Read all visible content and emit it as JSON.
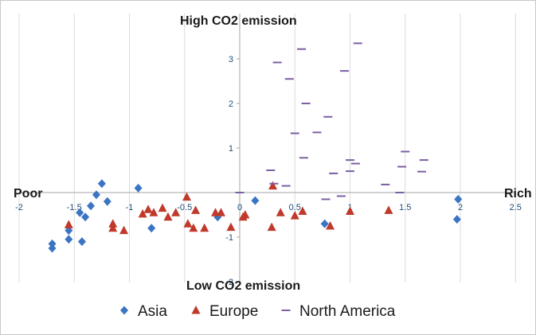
{
  "chart_data": {
    "type": "scatter",
    "title": "",
    "xlabel": "",
    "ylabel": "",
    "xlim": [
      -2,
      2.5
    ],
    "ylim": [
      -2,
      4
    ],
    "x_ticks": [
      -2,
      -1.5,
      -1,
      -0.5,
      0,
      0.5,
      1,
      1.5,
      2,
      2.5
    ],
    "x_tick_labels": [
      "-2",
      "-1.5",
      "-1",
      "-0.5",
      "0",
      "0.5",
      "1",
      "1.5",
      "2",
      "2.5"
    ],
    "y_ticks": [
      -2,
      -1,
      1,
      2,
      3
    ],
    "y_tick_labels": [
      "-2",
      "-1",
      "1",
      "2",
      "3"
    ],
    "grid": "vertical gridlines",
    "legend_position": "bottom",
    "annotations": {
      "top": "High CO2 emission",
      "bottom": "Low CO2 emission",
      "left": "Poor",
      "right": "Rich"
    },
    "series": [
      {
        "name": "Asia",
        "marker": "diamond",
        "color": "#3a75c4",
        "points": [
          [
            -1.7,
            -1.15
          ],
          [
            -1.7,
            -1.25
          ],
          [
            -1.55,
            -0.85
          ],
          [
            -1.55,
            -1.05
          ],
          [
            -1.45,
            -0.45
          ],
          [
            -1.43,
            -1.1
          ],
          [
            -1.4,
            -0.55
          ],
          [
            -1.35,
            -0.3
          ],
          [
            -1.3,
            -0.05
          ],
          [
            -1.25,
            0.2
          ],
          [
            -1.2,
            -0.2
          ],
          [
            -0.92,
            0.1
          ],
          [
            -0.8,
            -0.8
          ],
          [
            -0.2,
            -0.55
          ],
          [
            0.14,
            -0.18
          ],
          [
            0.77,
            -0.7
          ],
          [
            1.98,
            -0.15
          ],
          [
            1.97,
            -0.6
          ]
        ]
      },
      {
        "name": "Europe",
        "marker": "triangle",
        "color": "#c0392b",
        "points": [
          [
            -1.55,
            -0.72
          ],
          [
            -1.15,
            -0.7
          ],
          [
            -1.15,
            -0.8
          ],
          [
            -1.05,
            -0.85
          ],
          [
            -0.88,
            -0.48
          ],
          [
            -0.83,
            -0.38
          ],
          [
            -0.78,
            -0.45
          ],
          [
            -0.7,
            -0.35
          ],
          [
            -0.65,
            -0.55
          ],
          [
            -0.58,
            -0.45
          ],
          [
            -0.48,
            -0.1
          ],
          [
            -0.47,
            -0.7
          ],
          [
            -0.42,
            -0.8
          ],
          [
            -0.4,
            -0.4
          ],
          [
            -0.32,
            -0.8
          ],
          [
            -0.22,
            -0.45
          ],
          [
            -0.17,
            -0.45
          ],
          [
            -0.08,
            -0.78
          ],
          [
            0.03,
            -0.55
          ],
          [
            0.05,
            -0.5
          ],
          [
            0.3,
            0.15
          ],
          [
            0.29,
            -0.78
          ],
          [
            0.37,
            -0.45
          ],
          [
            0.5,
            -0.52
          ],
          [
            0.57,
            -0.42
          ],
          [
            0.82,
            -0.75
          ],
          [
            1.0,
            -0.42
          ],
          [
            1.35,
            -0.4
          ]
        ]
      },
      {
        "name": "North America",
        "marker": "dash",
        "color": "#7b5fa3",
        "points": [
          [
            0.0,
            0.0
          ],
          [
            0.28,
            0.5
          ],
          [
            0.34,
            2.92
          ],
          [
            0.45,
            2.55
          ],
          [
            0.5,
            1.33
          ],
          [
            0.56,
            3.22
          ],
          [
            0.6,
            2.0
          ],
          [
            0.58,
            0.78
          ],
          [
            0.7,
            1.35
          ],
          [
            0.8,
            1.7
          ],
          [
            0.85,
            0.43
          ],
          [
            0.95,
            2.73
          ],
          [
            1.0,
            0.73
          ],
          [
            1.0,
            0.48
          ],
          [
            1.07,
            3.35
          ],
          [
            1.05,
            0.65
          ],
          [
            1.32,
            0.18
          ],
          [
            1.45,
            0.0
          ],
          [
            1.47,
            0.58
          ],
          [
            1.5,
            0.92
          ],
          [
            1.65,
            0.47
          ],
          [
            1.67,
            0.73
          ],
          [
            0.92,
            -0.08
          ],
          [
            0.78,
            -0.15
          ],
          [
            0.42,
            0.15
          ],
          [
            0.31,
            0.2
          ]
        ]
      }
    ]
  }
}
